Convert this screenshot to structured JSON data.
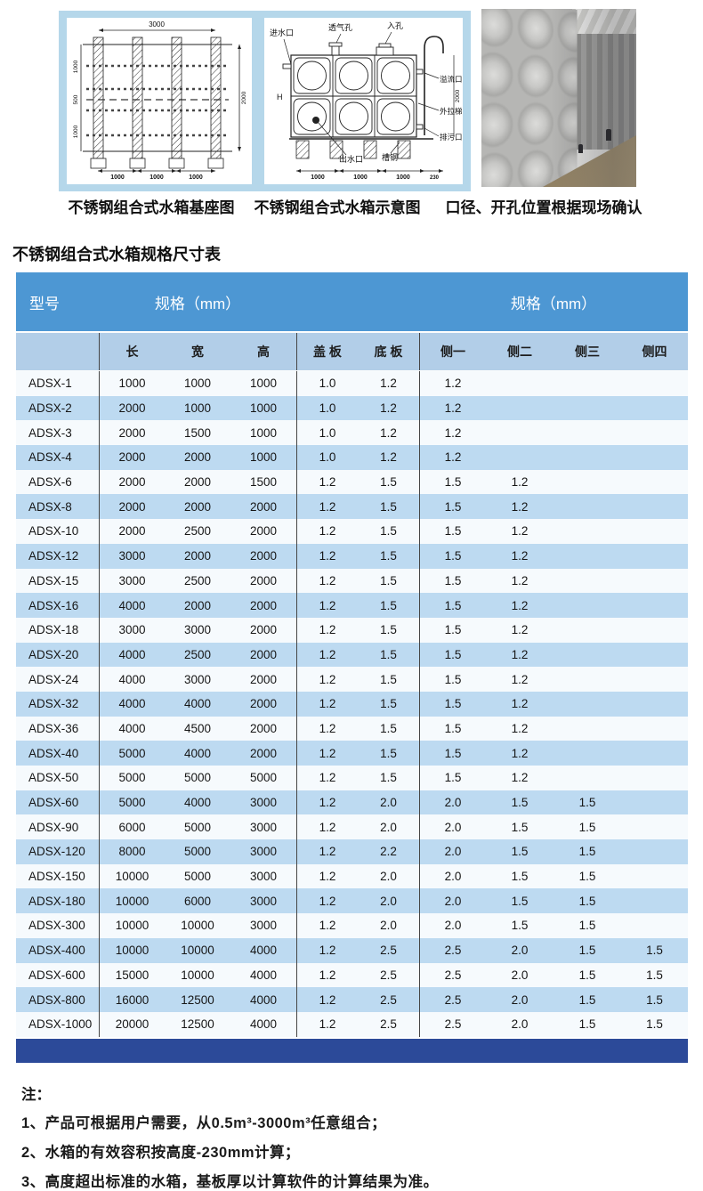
{
  "media": {
    "caption_base": "不锈钢组合式水箱基座图",
    "caption_schematic": "不锈钢组合式水箱示意图",
    "caption_photo": "口径、开孔位置根据现场确认",
    "base_diagram": {
      "dim_top": "3000",
      "dims_left": [
        "1000",
        "500",
        "1000"
      ],
      "dim_right": "2000",
      "dims_bottom": [
        "1000",
        "1000",
        "1000"
      ]
    },
    "schematic_diagram": {
      "label_inlet": "进水口",
      "label_vent": "透气孔",
      "label_manhole": "入孔",
      "label_overflow": "溢流口",
      "label_ladder": "外拉梯",
      "label_drain": "排污口",
      "label_outlet": "出水口",
      "label_channel": "槽钢",
      "label_height": "H",
      "dim_right": "2000",
      "dims_bottom": [
        "1000",
        "1000",
        "1000",
        "230"
      ]
    }
  },
  "section_title": "不锈钢组合式水箱规格尺寸表",
  "table": {
    "group_model": "型号",
    "group_spec1": "规格（mm）",
    "group_spec2": "规格（mm）",
    "columns": [
      "长",
      "宽",
      "高",
      "盖 板",
      "底 板",
      "侧一",
      "侧二",
      "侧三",
      "侧四"
    ],
    "rows": [
      {
        "model": "ADSX-1",
        "values": [
          "1000",
          "1000",
          "1000",
          "1.0",
          "1.2",
          "1.2",
          "",
          "",
          ""
        ]
      },
      {
        "model": "ADSX-2",
        "values": [
          "2000",
          "1000",
          "1000",
          "1.0",
          "1.2",
          "1.2",
          "",
          "",
          ""
        ]
      },
      {
        "model": "ADSX-3",
        "values": [
          "2000",
          "1500",
          "1000",
          "1.0",
          "1.2",
          "1.2",
          "",
          "",
          ""
        ]
      },
      {
        "model": "ADSX-4",
        "values": [
          "2000",
          "2000",
          "1000",
          "1.0",
          "1.2",
          "1.2",
          "",
          "",
          ""
        ]
      },
      {
        "model": "ADSX-6",
        "values": [
          "2000",
          "2000",
          "1500",
          "1.2",
          "1.5",
          "1.5",
          "1.2",
          "",
          ""
        ]
      },
      {
        "model": "ADSX-8",
        "values": [
          "2000",
          "2000",
          "2000",
          "1.2",
          "1.5",
          "1.5",
          "1.2",
          "",
          ""
        ]
      },
      {
        "model": "ADSX-10",
        "values": [
          "2000",
          "2500",
          "2000",
          "1.2",
          "1.5",
          "1.5",
          "1.2",
          "",
          ""
        ]
      },
      {
        "model": "ADSX-12",
        "values": [
          "3000",
          "2000",
          "2000",
          "1.2",
          "1.5",
          "1.5",
          "1.2",
          "",
          ""
        ]
      },
      {
        "model": "ADSX-15",
        "values": [
          "3000",
          "2500",
          "2000",
          "1.2",
          "1.5",
          "1.5",
          "1.2",
          "",
          ""
        ]
      },
      {
        "model": "ADSX-16",
        "values": [
          "4000",
          "2000",
          "2000",
          "1.2",
          "1.5",
          "1.5",
          "1.2",
          "",
          ""
        ]
      },
      {
        "model": "ADSX-18",
        "values": [
          "3000",
          "3000",
          "2000",
          "1.2",
          "1.5",
          "1.5",
          "1.2",
          "",
          ""
        ]
      },
      {
        "model": "ADSX-20",
        "values": [
          "4000",
          "2500",
          "2000",
          "1.2",
          "1.5",
          "1.5",
          "1.2",
          "",
          ""
        ]
      },
      {
        "model": "ADSX-24",
        "values": [
          "4000",
          "3000",
          "2000",
          "1.2",
          "1.5",
          "1.5",
          "1.2",
          "",
          ""
        ]
      },
      {
        "model": "ADSX-32",
        "values": [
          "4000",
          "4000",
          "2000",
          "1.2",
          "1.5",
          "1.5",
          "1.2",
          "",
          ""
        ]
      },
      {
        "model": "ADSX-36",
        "values": [
          "4000",
          "4500",
          "2000",
          "1.2",
          "1.5",
          "1.5",
          "1.2",
          "",
          ""
        ]
      },
      {
        "model": "ADSX-40",
        "values": [
          "5000",
          "4000",
          "2000",
          "1.2",
          "1.5",
          "1.5",
          "1.2",
          "",
          ""
        ]
      },
      {
        "model": "ADSX-50",
        "values": [
          "5000",
          "5000",
          "5000",
          "1.2",
          "1.5",
          "1.5",
          "1.2",
          "",
          ""
        ]
      },
      {
        "model": "ADSX-60",
        "values": [
          "5000",
          "4000",
          "3000",
          "1.2",
          "2.0",
          "2.0",
          "1.5",
          "1.5",
          ""
        ]
      },
      {
        "model": "ADSX-90",
        "values": [
          "6000",
          "5000",
          "3000",
          "1.2",
          "2.0",
          "2.0",
          "1.5",
          "1.5",
          ""
        ]
      },
      {
        "model": "ADSX-120",
        "values": [
          "8000",
          "5000",
          "3000",
          "1.2",
          "2.2",
          "2.0",
          "1.5",
          "1.5",
          ""
        ]
      },
      {
        "model": "ADSX-150",
        "values": [
          "10000",
          "5000",
          "3000",
          "1.2",
          "2.0",
          "2.0",
          "1.5",
          "1.5",
          ""
        ]
      },
      {
        "model": "ADSX-180",
        "values": [
          "10000",
          "6000",
          "3000",
          "1.2",
          "2.0",
          "2.0",
          "1.5",
          "1.5",
          ""
        ]
      },
      {
        "model": "ADSX-300",
        "values": [
          "10000",
          "10000",
          "3000",
          "1.2",
          "2.0",
          "2.0",
          "1.5",
          "1.5",
          ""
        ]
      },
      {
        "model": "ADSX-400",
        "values": [
          "10000",
          "10000",
          "4000",
          "1.2",
          "2.5",
          "2.5",
          "2.0",
          "1.5",
          "1.5"
        ]
      },
      {
        "model": "ADSX-600",
        "values": [
          "15000",
          "10000",
          "4000",
          "1.2",
          "2.5",
          "2.5",
          "2.0",
          "1.5",
          "1.5"
        ]
      },
      {
        "model": "ADSX-800",
        "values": [
          "16000",
          "12500",
          "4000",
          "1.2",
          "2.5",
          "2.5",
          "2.0",
          "1.5",
          "1.5"
        ]
      },
      {
        "model": "ADSX-1000",
        "values": [
          "20000",
          "12500",
          "4000",
          "1.2",
          "2.5",
          "2.5",
          "2.0",
          "1.5",
          "1.5"
        ]
      }
    ]
  },
  "notes": {
    "title": "注：",
    "items": [
      "1、产品可根据用户需要，从0.5m³-3000m³任意组合；",
      "2、水箱的有效容积按高度-230mm计算；",
      "3、高度超出标准的水箱，基板厚以计算软件的计算结果为准。"
    ]
  },
  "colors": {
    "header_blue": "#4d97d3",
    "subheader_blue": "#b2cee8",
    "row_blue": "#bddaf1",
    "row_white": "#f6fafd",
    "footer_navy": "#2c4a99",
    "panel_blue": "#b5d7ea"
  }
}
